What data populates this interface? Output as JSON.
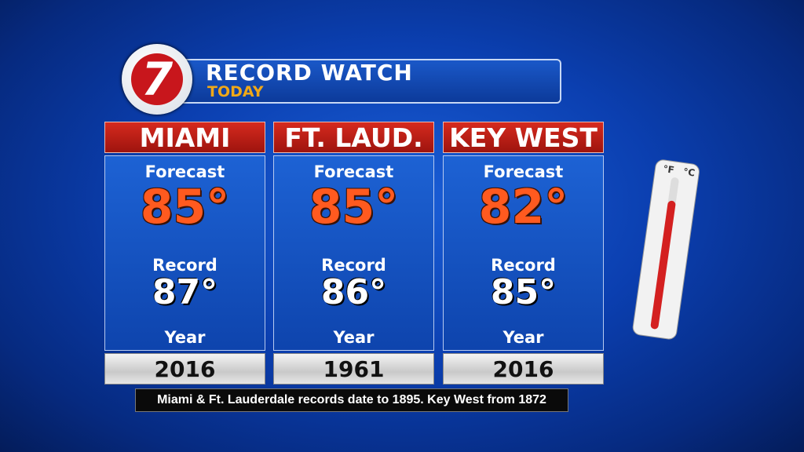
{
  "header": {
    "logo": "7",
    "title": "RECORD WATCH",
    "subtitle": "TODAY"
  },
  "columns": [
    {
      "city": "MIAMI",
      "forecast_label": "Forecast",
      "forecast": "85°",
      "record_label": "Record",
      "record": "87°",
      "year_label": "Year",
      "year": "2016"
    },
    {
      "city": "FT. LAUD.",
      "forecast_label": "Forecast",
      "forecast": "85°",
      "record_label": "Record",
      "record": "86°",
      "year_label": "Year",
      "year": "1961"
    },
    {
      "city": "KEY WEST",
      "forecast_label": "Forecast",
      "forecast": "82°",
      "record_label": "Record",
      "record": "85°",
      "year_label": "Year",
      "year": "2016"
    }
  ],
  "thermometer": {
    "f_label": "°F",
    "c_label": "°C"
  },
  "footnote": "Miami & Ft. Lauderdale records date to 1895. Key West from 1872"
}
